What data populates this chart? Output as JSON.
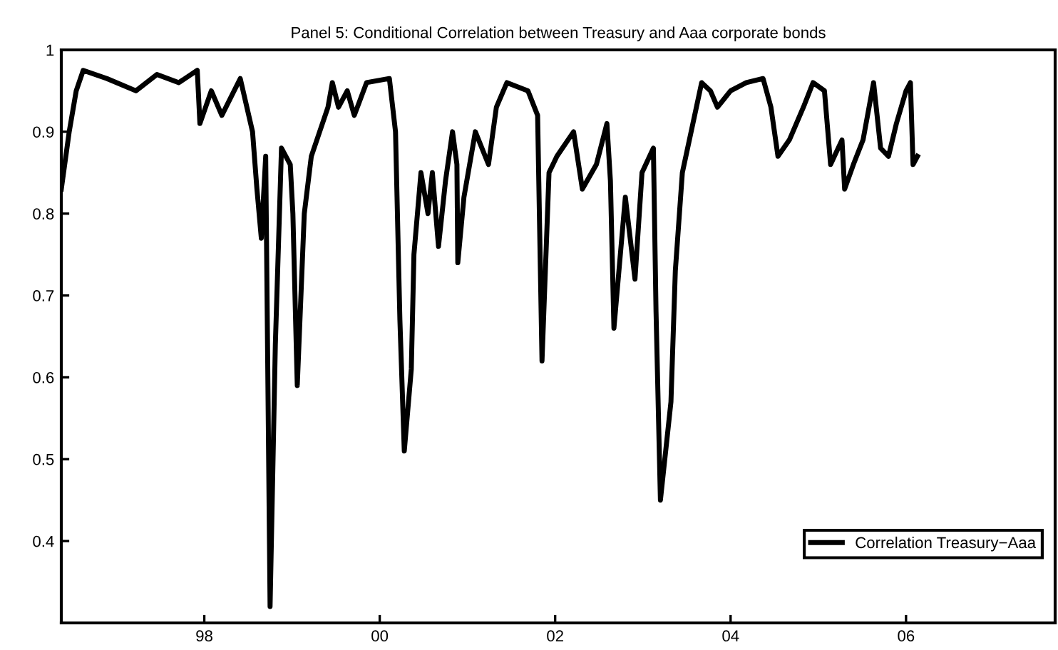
{
  "chart_data": {
    "type": "line",
    "title": "Panel 5: Conditional Correlation between Treasury and Aaa corporate bonds",
    "x": [
      1996.37,
      1996.46,
      1996.54,
      1996.62,
      1996.89,
      1997.22,
      1997.46,
      1997.71,
      1997.92,
      1997.95,
      1998.08,
      1998.2,
      1998.41,
      1998.55,
      1998.6,
      1998.65,
      1998.7,
      1998.75,
      1998.81,
      1998.88,
      1998.98,
      1999.01,
      1999.06,
      1999.14,
      1999.22,
      1999.41,
      1999.46,
      1999.53,
      1999.63,
      1999.71,
      1999.85,
      2000.11,
      2000.18,
      2000.23,
      2000.28,
      2000.36,
      2000.39,
      2000.47,
      2000.55,
      2000.6,
      2000.67,
      2000.75,
      2000.83,
      2000.88,
      2000.89,
      2000.96,
      2001.09,
      2001.24,
      2001.33,
      2001.45,
      2001.69,
      2001.8,
      2001.85,
      2001.93,
      2002.02,
      2002.21,
      2002.31,
      2002.47,
      2002.59,
      2002.63,
      2002.67,
      2002.8,
      2002.91,
      2002.99,
      2003.12,
      2003.15,
      2003.2,
      2003.32,
      2003.37,
      2003.45,
      2003.61,
      2003.67,
      2003.77,
      2003.85,
      2004.0,
      2004.18,
      2004.37,
      2004.46,
      2004.54,
      2004.67,
      2004.83,
      2004.94,
      2005.07,
      2005.14,
      2005.27,
      2005.3,
      2005.4,
      2005.51,
      2005.63,
      2005.71,
      2005.8,
      2005.89,
      2006.0,
      2006.05,
      2006.08,
      2006.13
    ],
    "series": [
      {
        "name": "Correlation Treasury−Aaa",
        "color": "#000000",
        "values": [
          0.83,
          0.9,
          0.95,
          0.975,
          0.965,
          0.95,
          0.97,
          0.96,
          0.975,
          0.91,
          0.95,
          0.92,
          0.965,
          0.9,
          0.83,
          0.77,
          0.87,
          0.32,
          0.64,
          0.88,
          0.86,
          0.8,
          0.59,
          0.8,
          0.87,
          0.93,
          0.96,
          0.93,
          0.95,
          0.92,
          0.96,
          0.965,
          0.9,
          0.67,
          0.51,
          0.61,
          0.75,
          0.85,
          0.8,
          0.85,
          0.76,
          0.84,
          0.9,
          0.86,
          0.74,
          0.82,
          0.9,
          0.86,
          0.93,
          0.96,
          0.95,
          0.92,
          0.62,
          0.85,
          0.87,
          0.9,
          0.83,
          0.86,
          0.91,
          0.84,
          0.66,
          0.82,
          0.72,
          0.85,
          0.88,
          0.68,
          0.45,
          0.57,
          0.73,
          0.85,
          0.93,
          0.96,
          0.95,
          0.93,
          0.95,
          0.96,
          0.965,
          0.93,
          0.87,
          0.89,
          0.93,
          0.96,
          0.95,
          0.86,
          0.89,
          0.83,
          0.86,
          0.89,
          0.96,
          0.88,
          0.87,
          0.91,
          0.95,
          0.96,
          0.86,
          0.87
        ]
      }
    ],
    "xlim": [
      1996.37,
      2007.7
    ],
    "xticks": [
      {
        "value": 1998,
        "label": "98"
      },
      {
        "value": 2000,
        "label": "00"
      },
      {
        "value": 2002,
        "label": "02"
      },
      {
        "value": 2004,
        "label": "04"
      },
      {
        "value": 2006,
        "label": "06"
      }
    ],
    "ylim": [
      0.3,
      1
    ],
    "yticks": [
      0.4,
      0.5,
      0.6,
      0.7,
      0.8,
      0.9,
      1
    ],
    "legend": "bottom right",
    "grid": false,
    "marker": "none",
    "line_style": "solid"
  }
}
